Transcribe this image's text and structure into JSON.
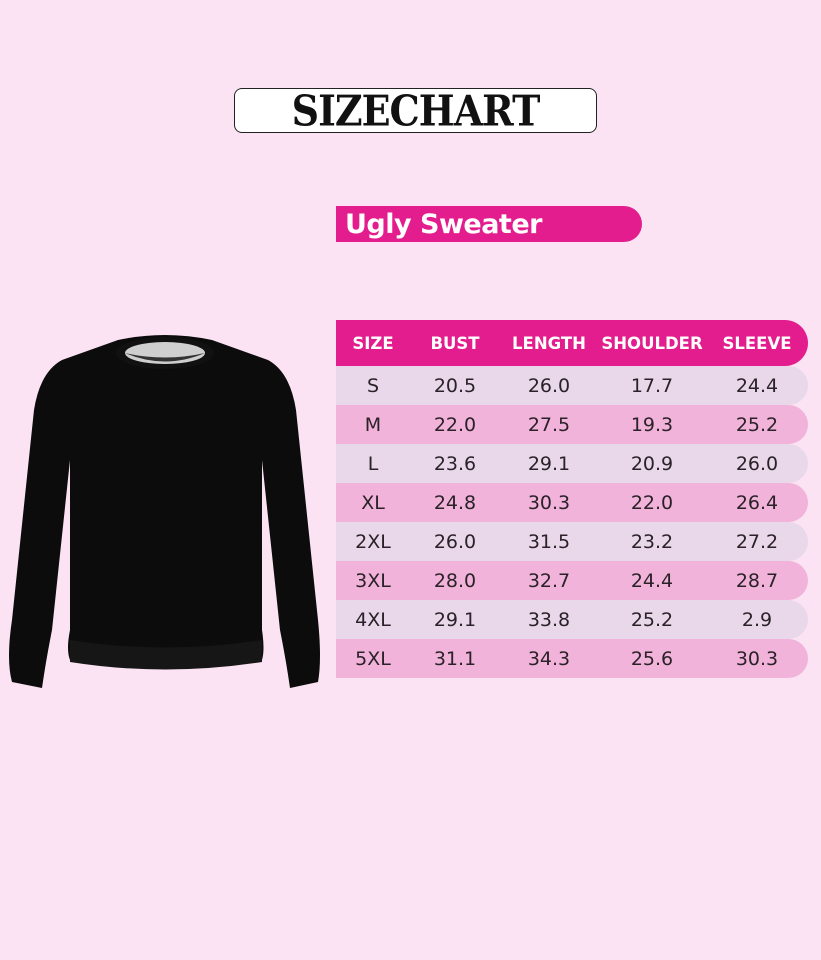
{
  "title": "SIZECHART",
  "product": "Ugly Sweater",
  "colors": {
    "background": "#fbe3f3",
    "accent": "#e31d8d",
    "row_light": "#e8d8ea",
    "row_pink": "#f2b3da",
    "garment": "#0c0c0c"
  },
  "image": {
    "icon": "black-crewneck-sweater"
  },
  "table": {
    "headers": [
      "SIZE",
      "BUST",
      "LENGTH",
      "SHOULDER",
      "SLEEVE"
    ],
    "rows": [
      [
        "S",
        "20.5",
        "26.0",
        "17.7",
        "24.4"
      ],
      [
        "M",
        "22.0",
        "27.5",
        "19.3",
        "25.2"
      ],
      [
        "L",
        "23.6",
        "29.1",
        "20.9",
        "26.0"
      ],
      [
        "XL",
        "24.8",
        "30.3",
        "22.0",
        "26.4"
      ],
      [
        "2XL",
        "26.0",
        "31.5",
        "23.2",
        "27.2"
      ],
      [
        "3XL",
        "28.0",
        "32.7",
        "24.4",
        "28.7"
      ],
      [
        "4XL",
        "29.1",
        "33.8",
        "25.2",
        "2.9"
      ],
      [
        "5XL",
        "31.1",
        "34.3",
        "25.6",
        "30.3"
      ]
    ]
  }
}
